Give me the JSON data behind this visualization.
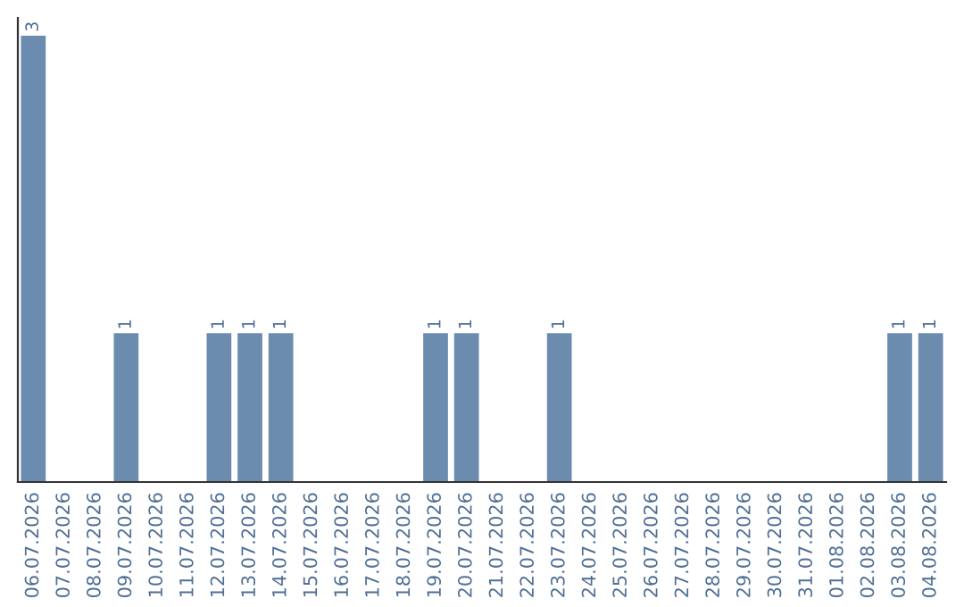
{
  "chart_data": {
    "type": "bar",
    "categories": [
      "06.07.2026",
      "07.07.2026",
      "08.07.2026",
      "09.07.2026",
      "10.07.2026",
      "11.07.2026",
      "12.07.2026",
      "13.07.2026",
      "14.07.2026",
      "15.07.2026",
      "16.07.2026",
      "17.07.2026",
      "18.07.2026",
      "19.07.2026",
      "20.07.2026",
      "21.07.2026",
      "22.07.2026",
      "23.07.2026",
      "24.07.2026",
      "25.07.2026",
      "26.07.2026",
      "27.07.2026",
      "28.07.2026",
      "29.07.2026",
      "30.07.2026",
      "31.07.2026",
      "01.08.2026",
      "02.08.2026",
      "03.08.2026",
      "04.08.2026"
    ],
    "values": [
      3,
      0,
      0,
      1,
      0,
      0,
      1,
      1,
      1,
      0,
      0,
      0,
      0,
      1,
      1,
      0,
      0,
      1,
      0,
      0,
      0,
      0,
      0,
      0,
      0,
      0,
      0,
      0,
      1,
      1
    ],
    "value_labels": [
      "3",
      null,
      null,
      "1",
      null,
      null,
      "1",
      "1",
      "1",
      null,
      null,
      null,
      null,
      "1",
      "1",
      null,
      null,
      "1",
      null,
      null,
      null,
      null,
      null,
      null,
      null,
      null,
      null,
      null,
      "1",
      "1"
    ],
    "color": "#6b8caf",
    "grid": false,
    "legend": false
  }
}
